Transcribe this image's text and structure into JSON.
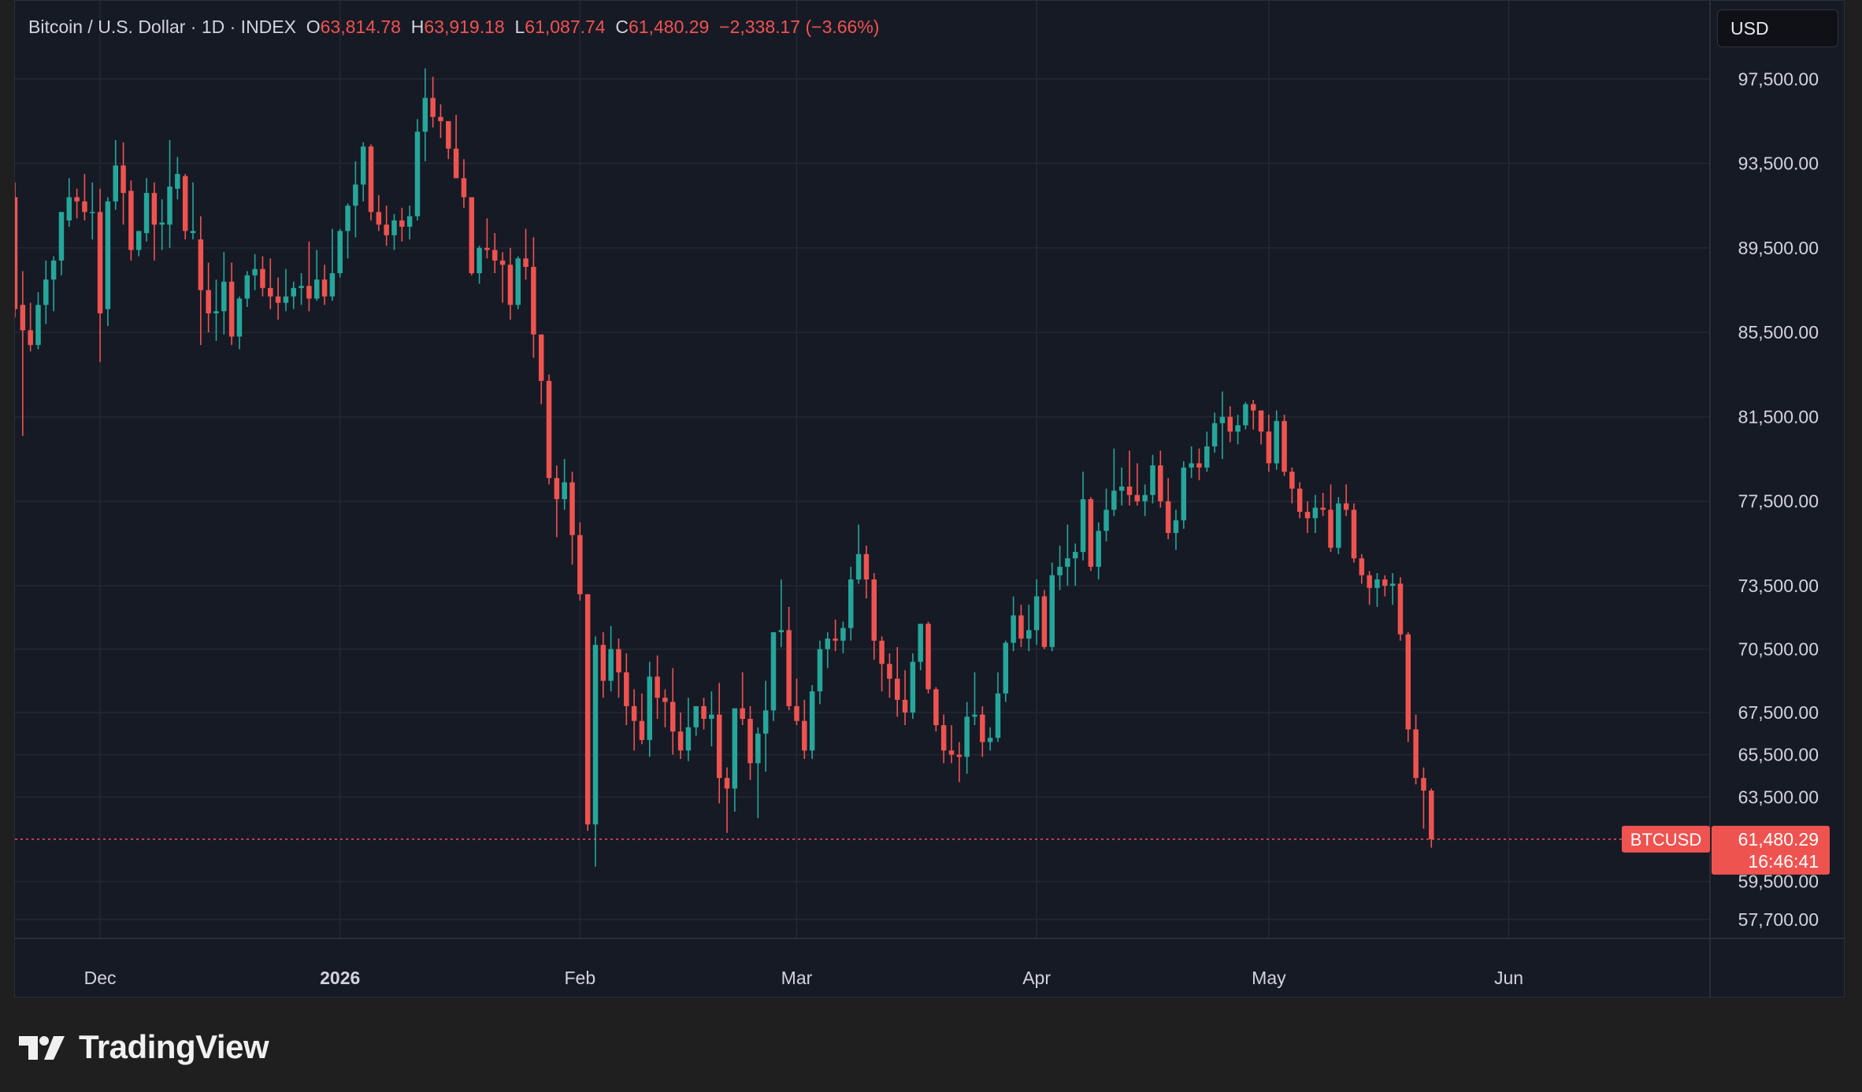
{
  "legend": {
    "symbol": "Bitcoin / U.S. Dollar · 1D · INDEX",
    "open_label": "O",
    "open": "63,814.78",
    "high_label": "H",
    "high": "63,919.18",
    "low_label": "L",
    "low": "61,087.74",
    "close_label": "C",
    "close": "61,480.29",
    "change": "−2,338.17 (−3.66%)"
  },
  "currency_button": "USD",
  "price_badge": {
    "symbol": "BTCUSD",
    "price": "61,480.29",
    "countdown": "16:46:41"
  },
  "brand": {
    "name": "TradingView"
  },
  "colors": {
    "up": "#26a69a",
    "down": "#ef5350",
    "background": "#161a25",
    "grid": "#242833",
    "axis_text": "#d1d4dc"
  },
  "chart_data": {
    "type": "candlestick",
    "interval": "1D",
    "y_axis_side": "right",
    "grid": true,
    "ylim": [
      56800,
      101200
    ],
    "y_tick_values": [
      97500,
      93500,
      89500,
      85500,
      81500,
      77500,
      73500,
      70500,
      67500,
      65500,
      63500,
      59500,
      57700
    ],
    "y_tick_labels": [
      "97,500.00",
      "93,500.00",
      "89,500.00",
      "85,500.00",
      "81,500.00",
      "77,500.00",
      "73,500.00",
      "70,500.00",
      "67,500.00",
      "65,500.00",
      "63,500.00",
      "59,500.00",
      "57,700.00"
    ],
    "x_range": [
      "2025-11-20",
      "2026-06-27"
    ],
    "x_ticks": [
      {
        "date": "2025-12-01",
        "label": "Dec",
        "bold": false
      },
      {
        "date": "2026-01-01",
        "label": "2026",
        "bold": true
      },
      {
        "date": "2026-02-01",
        "label": "Feb",
        "bold": false
      },
      {
        "date": "2026-03-01",
        "label": "Mar",
        "bold": false
      },
      {
        "date": "2026-04-01",
        "label": "Apr",
        "bold": false
      },
      {
        "date": "2026-05-01",
        "label": "May",
        "bold": false
      },
      {
        "date": "2026-06-01",
        "label": "Jun",
        "bold": false
      }
    ],
    "first_candle_date": "2025-11-20",
    "candle_fields": [
      "open",
      "high",
      "low",
      "close"
    ],
    "candles": [
      [
        91900,
        92600,
        86200,
        86600
      ],
      [
        86800,
        88400,
        80600,
        85600
      ],
      [
        85600,
        86900,
        84600,
        84900
      ],
      [
        84900,
        87400,
        84700,
        86800
      ],
      [
        86800,
        88900,
        85900,
        88000
      ],
      [
        88000,
        89100,
        86500,
        88900
      ],
      [
        88900,
        91200,
        88200,
        91200
      ],
      [
        90800,
        92800,
        90500,
        91900
      ],
      [
        91900,
        92300,
        90900,
        91700
      ],
      [
        91700,
        93000,
        90800,
        91200
      ],
      [
        91200,
        92600,
        89900,
        91200
      ],
      [
        91200,
        92300,
        84100,
        86400
      ],
      [
        86600,
        91900,
        85800,
        91700
      ],
      [
        91700,
        94600,
        91300,
        93400
      ],
      [
        93400,
        94500,
        90600,
        92100
      ],
      [
        92200,
        92700,
        88900,
        89400
      ],
      [
        89400,
        90300,
        89100,
        90300
      ],
      [
        90200,
        92800,
        89800,
        92100
      ],
      [
        92100,
        92600,
        88900,
        90600
      ],
      [
        90600,
        91800,
        89400,
        90700
      ],
      [
        90600,
        94600,
        89500,
        92400
      ],
      [
        92300,
        93800,
        91800,
        93000
      ],
      [
        92900,
        93000,
        89900,
        90300
      ],
      [
        90200,
        92600,
        89900,
        90300
      ],
      [
        89900,
        91000,
        84900,
        87500
      ],
      [
        87500,
        88800,
        85500,
        86400
      ],
      [
        86400,
        88000,
        85100,
        86500
      ],
      [
        86500,
        89300,
        85400,
        87900
      ],
      [
        87900,
        88800,
        84900,
        85300
      ],
      [
        85300,
        87200,
        84700,
        87100
      ],
      [
        87100,
        88400,
        86700,
        88200
      ],
      [
        88200,
        89200,
        87500,
        88500
      ],
      [
        88500,
        89100,
        87200,
        87600
      ],
      [
        87600,
        89000,
        86600,
        87200
      ],
      [
        87200,
        88100,
        86100,
        86900
      ],
      [
        86900,
        88500,
        86500,
        87200
      ],
      [
        87200,
        87900,
        86600,
        87600
      ],
      [
        87600,
        88300,
        86800,
        87700
      ],
      [
        87700,
        89800,
        86500,
        87100
      ],
      [
        87100,
        89400,
        87000,
        88000
      ],
      [
        88000,
        88700,
        86800,
        87200
      ],
      [
        87200,
        90400,
        87000,
        88300
      ],
      [
        88300,
        90400,
        88100,
        90300
      ],
      [
        90300,
        91600,
        89000,
        91500
      ],
      [
        91500,
        93600,
        90000,
        92500
      ],
      [
        92500,
        94500,
        91700,
        94300
      ],
      [
        94300,
        94400,
        90800,
        91200
      ],
      [
        91200,
        92000,
        90300,
        90600
      ],
      [
        90600,
        91500,
        89600,
        90100
      ],
      [
        90100,
        91100,
        89400,
        90800
      ],
      [
        90800,
        91400,
        89800,
        90500
      ],
      [
        90500,
        91500,
        89900,
        91000
      ],
      [
        91000,
        95600,
        90800,
        95000
      ],
      [
        95000,
        98000,
        93600,
        96600
      ],
      [
        96600,
        97600,
        95200,
        95700
      ],
      [
        95700,
        96300,
        94700,
        95500
      ],
      [
        95500,
        95500,
        93700,
        94200
      ],
      [
        94200,
        95800,
        92800,
        92800
      ],
      [
        92800,
        93700,
        91400,
        91900
      ],
      [
        91900,
        91900,
        88200,
        88300
      ],
      [
        88300,
        89600,
        87800,
        89500
      ],
      [
        89500,
        90900,
        89000,
        89400
      ],
      [
        89400,
        90200,
        88300,
        88900
      ],
      [
        88900,
        89300,
        86900,
        88700
      ],
      [
        88700,
        89500,
        86100,
        86800
      ],
      [
        86800,
        89100,
        86600,
        89000
      ],
      [
        89000,
        90400,
        88000,
        88600
      ],
      [
        88600,
        90000,
        84300,
        85400
      ],
      [
        85400,
        85400,
        82100,
        83200
      ],
      [
        83200,
        83500,
        78300,
        78600
      ],
      [
        78600,
        79200,
        75800,
        77600
      ],
      [
        77600,
        79500,
        77100,
        78400
      ],
      [
        78400,
        78900,
        74500,
        75900
      ],
      [
        75900,
        76500,
        72800,
        73100
      ],
      [
        73100,
        73100,
        61900,
        62200
      ],
      [
        62200,
        71100,
        60200,
        70700
      ],
      [
        70700,
        71300,
        68200,
        69000
      ],
      [
        69000,
        71600,
        68500,
        70500
      ],
      [
        70500,
        71000,
        68200,
        69400
      ],
      [
        69400,
        70300,
        66900,
        67800
      ],
      [
        67800,
        68600,
        65700,
        67100
      ],
      [
        67100,
        68400,
        66000,
        66200
      ],
      [
        66200,
        69900,
        65400,
        69200
      ],
      [
        69200,
        70200,
        67200,
        68200
      ],
      [
        68200,
        68600,
        66800,
        68000
      ],
      [
        68000,
        69600,
        65500,
        66600
      ],
      [
        66600,
        67500,
        65300,
        65700
      ],
      [
        65700,
        68200,
        65200,
        66800
      ],
      [
        66800,
        67800,
        66400,
        67800
      ],
      [
        67800,
        68200,
        66700,
        67200
      ],
      [
        67200,
        68500,
        65900,
        67400
      ],
      [
        67400,
        68900,
        63200,
        64400
      ],
      [
        64400,
        64900,
        61800,
        63900
      ],
      [
        63900,
        67500,
        62800,
        67700
      ],
      [
        67700,
        69400,
        66900,
        67200
      ],
      [
        67200,
        67800,
        64300,
        65100
      ],
      [
        65100,
        66800,
        62500,
        66500
      ],
      [
        66500,
        69000,
        64700,
        67600
      ],
      [
        67600,
        71300,
        67100,
        71300
      ],
      [
        71300,
        73800,
        70600,
        71400
      ],
      [
        71400,
        72500,
        67600,
        67800
      ],
      [
        67800,
        69100,
        66900,
        67100
      ],
      [
        67100,
        68100,
        65300,
        65700
      ],
      [
        65700,
        68800,
        65300,
        68500
      ],
      [
        68500,
        70900,
        67900,
        70500
      ],
      [
        70500,
        71300,
        69600,
        71000
      ],
      [
        71000,
        71900,
        70400,
        70900
      ],
      [
        70900,
        71800,
        70300,
        71500
      ],
      [
        71500,
        74400,
        70900,
        73800
      ],
      [
        73800,
        76400,
        73600,
        75000
      ],
      [
        75000,
        75400,
        72900,
        73800
      ],
      [
        73800,
        74100,
        70000,
        70900
      ],
      [
        70900,
        71100,
        68500,
        69800
      ],
      [
        69800,
        70300,
        68200,
        69100
      ],
      [
        69100,
        70600,
        67300,
        68100
      ],
      [
        68100,
        69500,
        66900,
        67500
      ],
      [
        67500,
        70300,
        67200,
        69900
      ],
      [
        69900,
        71700,
        69500,
        71700
      ],
      [
        71700,
        71800,
        68400,
        68600
      ],
      [
        68600,
        68700,
        66600,
        66900
      ],
      [
        66900,
        67400,
        65100,
        65700
      ],
      [
        65700,
        66900,
        65100,
        65500
      ],
      [
        65500,
        66100,
        64200,
        65400
      ],
      [
        65400,
        68000,
        64600,
        67300
      ],
      [
        67300,
        69400,
        66900,
        67400
      ],
      [
        67400,
        67800,
        65400,
        66100
      ],
      [
        66100,
        66800,
        65700,
        66300
      ],
      [
        66300,
        69400,
        66100,
        68400
      ],
      [
        68400,
        70900,
        68000,
        70800
      ],
      [
        70800,
        73000,
        70400,
        72100
      ],
      [
        72100,
        72600,
        70600,
        71000
      ],
      [
        71000,
        72600,
        70400,
        71400
      ],
      [
        71400,
        73800,
        70700,
        73000
      ],
      [
        73000,
        73300,
        70500,
        70600
      ],
      [
        70600,
        74600,
        70400,
        74000
      ],
      [
        74000,
        75400,
        73300,
        74400
      ],
      [
        74400,
        76400,
        73500,
        74800
      ],
      [
        74800,
        75500,
        73500,
        75100
      ],
      [
        75100,
        78900,
        74700,
        77600
      ],
      [
        77600,
        77700,
        74200,
        74400
      ],
      [
        74400,
        76500,
        73800,
        76100
      ],
      [
        76100,
        78100,
        75600,
        77100
      ],
      [
        77100,
        80000,
        76800,
        78000
      ],
      [
        78000,
        79100,
        77300,
        78200
      ],
      [
        78200,
        79900,
        77300,
        77800
      ],
      [
        77800,
        79300,
        77300,
        77500
      ],
      [
        77500,
        78300,
        76800,
        77800
      ],
      [
        77800,
        79700,
        77400,
        79200
      ],
      [
        79200,
        79900,
        77200,
        77500
      ],
      [
        77500,
        78600,
        75700,
        76000
      ],
      [
        76000,
        77100,
        75200,
        76600
      ],
      [
        76600,
        79400,
        76200,
        79100
      ],
      [
        79100,
        80100,
        78600,
        79300
      ],
      [
        79300,
        80000,
        78500,
        79100
      ],
      [
        79100,
        80800,
        78900,
        80100
      ],
      [
        80100,
        81700,
        79800,
        81200
      ],
      [
        81200,
        82700,
        79500,
        81500
      ],
      [
        81500,
        82000,
        80300,
        80800
      ],
      [
        80800,
        81600,
        80200,
        81100
      ],
      [
        81100,
        82200,
        80900,
        82100
      ],
      [
        82100,
        82300,
        80900,
        81800
      ],
      [
        81800,
        81800,
        80200,
        80800
      ],
      [
        80800,
        81600,
        78900,
        79300
      ],
      [
        79300,
        81800,
        79000,
        81300
      ],
      [
        81300,
        81600,
        78700,
        78900
      ],
      [
        78900,
        79100,
        77400,
        78100
      ],
      [
        78100,
        78400,
        76700,
        77000
      ],
      [
        77000,
        77500,
        76000,
        76700
      ],
      [
        76700,
        77800,
        76000,
        77200
      ],
      [
        77200,
        77900,
        76800,
        77100
      ],
      [
        77100,
        78300,
        75100,
        75300
      ],
      [
        75300,
        77700,
        75000,
        77400
      ],
      [
        77400,
        78300,
        76800,
        77100
      ],
      [
        77100,
        77400,
        74600,
        74800
      ],
      [
        74800,
        75000,
        73600,
        74000
      ],
      [
        74000,
        74200,
        72600,
        73400
      ],
      [
        73400,
        74100,
        72500,
        73800
      ],
      [
        73800,
        74000,
        73000,
        73500
      ],
      [
        73500,
        74100,
        72600,
        73600
      ],
      [
        73600,
        73900,
        70900,
        71200
      ],
      [
        71200,
        71300,
        66100,
        66700
      ],
      [
        66700,
        67400,
        64100,
        64400
      ],
      [
        64400,
        64900,
        62000,
        63800
      ],
      [
        63800,
        63900,
        61100,
        61500
      ]
    ]
  }
}
